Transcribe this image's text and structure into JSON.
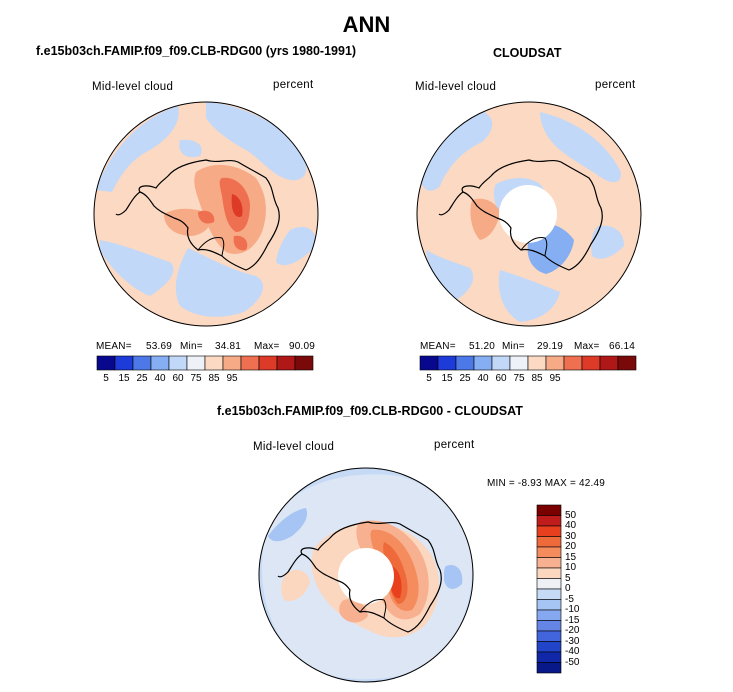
{
  "figure": {
    "title": "ANN"
  },
  "panels": {
    "model": {
      "title": "f.e15b03ch.FAMIP.f09_f09.CLB-RDG00 (yrs 1980-1991)",
      "left_label": "Mid-level cloud",
      "right_label": "percent",
      "mean_label": "MEAN=",
      "mean_value": "53.69",
      "min_label": "Min=",
      "min_value": "34.81",
      "max_label": "Max=",
      "max_value": "90.09"
    },
    "obs": {
      "title": "CLOUDSAT",
      "left_label": "Mid-level cloud",
      "right_label": "percent",
      "mean_label": "MEAN=",
      "mean_value": "51.20",
      "min_label": "Min=",
      "min_value": "29.19",
      "max_label": "Max=",
      "max_value": "66.14"
    },
    "diff": {
      "title": "f.e15b03ch.FAMIP.f09_f09.CLB-RDG00 - CLOUDSAT",
      "left_label": "Mid-level cloud",
      "right_label": "percent",
      "minmax_text": "MIN =  -8.93 MAX =  42.49"
    }
  },
  "chart_data": {
    "type": "heatmap",
    "projection": "south-polar stereographic",
    "abs_colorbar": {
      "colors": [
        "#08088f",
        "#1c3bd8",
        "#4c78e8",
        "#86aef2",
        "#c2d8f8",
        "#eef2f8",
        "#fbd9c2",
        "#f7aa86",
        "#ee7050",
        "#dd3a28",
        "#b01818",
        "#7a0a0a"
      ],
      "tick_labels": [
        "5",
        "15",
        "25",
        "40",
        "60",
        "75",
        "85",
        "95"
      ]
    },
    "diff_colorbar": {
      "colors": [
        "#7a0000",
        "#c01c1c",
        "#e8401e",
        "#ef6a3a",
        "#f48c5e",
        "#f7b190",
        "#fbd7c0",
        "#eef0f4",
        "#c6daf6",
        "#a6c4f4",
        "#86a8f0",
        "#6484e6",
        "#4264dc",
        "#2244c8",
        "#1028a8",
        "#081888"
      ],
      "tick_labels": [
        "50",
        "40",
        "30",
        "20",
        "15",
        "10",
        "5",
        "0",
        "-5",
        "-10",
        "-15",
        "-20",
        "-30",
        "-40",
        "-50"
      ]
    },
    "maps": [
      {
        "name": "model",
        "background_color": "#fbd9c2",
        "features": [
          {
            "color": "#c2d8f8",
            "shape": "ring-band",
            "location": "outer ocean sectors"
          },
          {
            "color": "#f7aa86",
            "shape": "blob",
            "location": "East Antarctic interior"
          },
          {
            "color": "#ee7050",
            "shape": "blob",
            "location": "central plateau"
          },
          {
            "color": "#dd3a28",
            "shape": "core",
            "location": "central plateau"
          }
        ]
      },
      {
        "name": "obs",
        "background_color": "#fbd9c2",
        "features": [
          {
            "color": "#c2d8f8",
            "shape": "ring-band",
            "location": "outer ocean sectors"
          },
          {
            "color": "#86aef2",
            "shape": "blob",
            "location": "Ross Ice Shelf"
          },
          {
            "color": "#f7aa86",
            "shape": "blob",
            "location": "Antarctic Peninsula"
          },
          {
            "color": "#ffffff",
            "shape": "polar-gap",
            "location": "south pole"
          }
        ]
      },
      {
        "name": "diff",
        "background_color": "#c6daf6",
        "features": [
          {
            "color": "#fbd7c0",
            "shape": "blob",
            "location": "Antarctic continent"
          },
          {
            "color": "#f48c5e",
            "shape": "blob",
            "location": "East Antarctica"
          },
          {
            "color": "#e8401e",
            "shape": "core",
            "location": "East Antarctica"
          },
          {
            "color": "#ffffff",
            "shape": "polar-gap",
            "location": "south pole"
          }
        ]
      }
    ]
  }
}
